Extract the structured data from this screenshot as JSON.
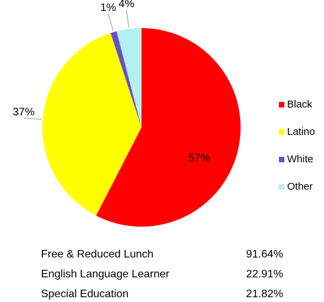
{
  "chart_data": {
    "type": "pie",
    "categories": [
      "Black",
      "Latino",
      "White",
      "Other"
    ],
    "values": [
      57,
      37,
      1,
      4
    ],
    "value_labels": [
      "57%",
      "37%",
      "1%",
      "4%"
    ],
    "colors": [
      "#ff0000",
      "#ffff00",
      "#6a4fc8",
      "#b3f0f0"
    ],
    "legend": "right"
  },
  "table": {
    "rows": [
      [
        "Free & Reduced Lunch",
        "91.64%"
      ],
      [
        "English Language Learner",
        "22.91%"
      ],
      [
        "Special Education",
        "21.82%"
      ]
    ]
  }
}
